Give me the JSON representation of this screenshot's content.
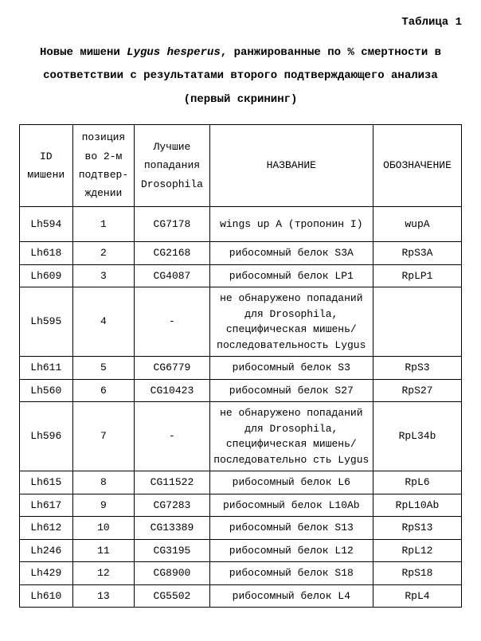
{
  "header": {
    "table_label": "Таблица 1"
  },
  "caption": {
    "line1_pre": "Новые мишени ",
    "line1_ital": "Lygus hesperus",
    "line1_post": ", ранжированные по % смертности в",
    "line2": "соответствии с результатами второго подтверждающего анализа",
    "line3": "(первый скрининг)"
  },
  "columns": {
    "c1": "ID мишени",
    "c2": "позиция во 2-м подтвер-ждении",
    "c3": "Лучшие попадания Drosophila",
    "c4": "НАЗВАНИЕ",
    "c5": "ОБОЗНАЧЕНИЕ"
  },
  "rows": [
    {
      "id": "Lh594",
      "pos": "1",
      "hit": "CG7178",
      "name": "wings up A (тропонин I)",
      "des": "wupA"
    },
    {
      "id": "Lh618",
      "pos": "2",
      "hit": "CG2168",
      "name": "рибосомный белок S3A",
      "des": "RpS3A"
    },
    {
      "id": "Lh609",
      "pos": "3",
      "hit": "CG4087",
      "name": "рибосомный белок LP1",
      "des": "RpLP1"
    },
    {
      "id": "Lh595",
      "pos": "4",
      "hit": "-",
      "name": "не обнаружено попаданий для Drosophila, специфическая мишень/ последовательность Lygus",
      "des": ""
    },
    {
      "id": "Lh611",
      "pos": "5",
      "hit": "CG6779",
      "name": "рибосомный белок S3",
      "des": "RpS3"
    },
    {
      "id": "Lh560",
      "pos": "6",
      "hit": "CG10423",
      "name": "рибосомный белок S27",
      "des": "RpS27"
    },
    {
      "id": "Lh596",
      "pos": "7",
      "hit": "-",
      "name": "не обнаружено попаданий для Drosophila, специфическая мишень/последовательно сть Lygus",
      "des": "RpL34b"
    },
    {
      "id": "Lh615",
      "pos": "8",
      "hit": "CG11522",
      "name": "рибосомный белок L6",
      "des": "RpL6"
    },
    {
      "id": "Lh617",
      "pos": "9",
      "hit": "CG7283",
      "name": "рибосомный белок L10Ab",
      "des": "RpL10Ab"
    },
    {
      "id": "Lh612",
      "pos": "10",
      "hit": "CG13389",
      "name": "рибосомный белок S13",
      "des": "RpS13"
    },
    {
      "id": "Lh246",
      "pos": "11",
      "hit": "CG3195",
      "name": "рибосомный белок L12",
      "des": "RpL12"
    },
    {
      "id": "Lh429",
      "pos": "12",
      "hit": "CG8900",
      "name": "рибосомный белок S18",
      "des": "RpS18"
    },
    {
      "id": "Lh610",
      "pos": "13",
      "hit": "CG5502",
      "name": "рибосомный белок L4",
      "des": "RpL4"
    }
  ]
}
